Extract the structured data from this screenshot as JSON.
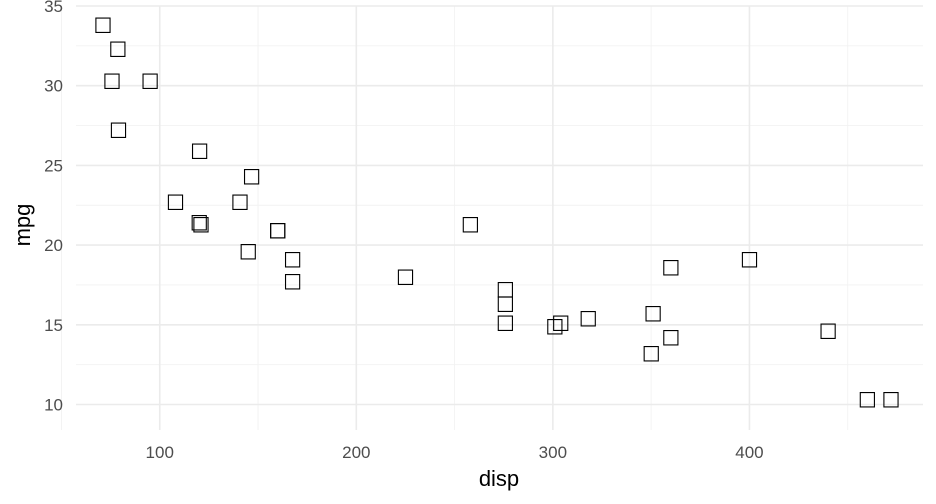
{
  "chart_data": {
    "type": "scatter",
    "title": "",
    "xlabel": "disp",
    "ylabel": "mpg",
    "xlim": [
      57.4,
      488.3
    ],
    "ylim": [
      8.4,
      35.0
    ],
    "x_ticks": [
      100,
      200,
      300,
      400
    ],
    "x_minor_ticks": [
      50,
      150,
      250,
      350,
      450
    ],
    "y_ticks": [
      10,
      15,
      20,
      25,
      30,
      35
    ],
    "y_minor_ticks": [
      12.5,
      17.5,
      22.5,
      27.5,
      32.5
    ],
    "grid": true,
    "marker": "□",
    "points": [
      {
        "x": 160,
        "y": 21.0
      },
      {
        "x": 160,
        "y": 21.0
      },
      {
        "x": 108,
        "y": 22.8
      },
      {
        "x": 258,
        "y": 21.4
      },
      {
        "x": 360,
        "y": 18.7
      },
      {
        "x": 225,
        "y": 18.1
      },
      {
        "x": 360,
        "y": 14.3
      },
      {
        "x": 146.7,
        "y": 24.4
      },
      {
        "x": 140.8,
        "y": 22.8
      },
      {
        "x": 167.6,
        "y": 19.2
      },
      {
        "x": 167.6,
        "y": 17.8
      },
      {
        "x": 275.8,
        "y": 16.4
      },
      {
        "x": 275.8,
        "y": 17.3
      },
      {
        "x": 275.8,
        "y": 15.2
      },
      {
        "x": 472,
        "y": 10.4
      },
      {
        "x": 460,
        "y": 10.4
      },
      {
        "x": 440,
        "y": 14.7
      },
      {
        "x": 78.7,
        "y": 32.4
      },
      {
        "x": 75.7,
        "y": 30.4
      },
      {
        "x": 71.1,
        "y": 33.9
      },
      {
        "x": 120.1,
        "y": 21.5
      },
      {
        "x": 318,
        "y": 15.5
      },
      {
        "x": 304,
        "y": 15.2
      },
      {
        "x": 350,
        "y": 13.3
      },
      {
        "x": 400,
        "y": 19.2
      },
      {
        "x": 79,
        "y": 27.3
      },
      {
        "x": 120.3,
        "y": 26.0
      },
      {
        "x": 95.1,
        "y": 30.4
      },
      {
        "x": 351,
        "y": 15.8
      },
      {
        "x": 145,
        "y": 19.7
      },
      {
        "x": 301,
        "y": 15.0
      },
      {
        "x": 121,
        "y": 21.4
      }
    ]
  }
}
